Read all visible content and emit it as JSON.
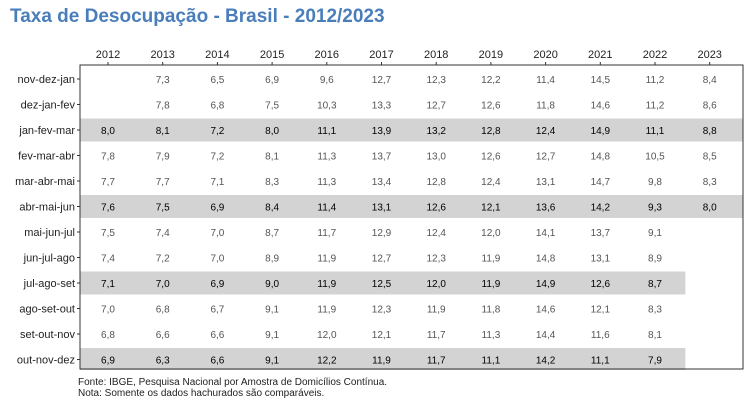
{
  "chart_data": {
    "type": "table",
    "title": "Taxa de Desocupação - Brasil - 2012/2023",
    "columns": [
      "2012",
      "2013",
      "2014",
      "2015",
      "2016",
      "2017",
      "2018",
      "2019",
      "2020",
      "2021",
      "2022",
      "2023"
    ],
    "rows": [
      {
        "label": "nov-dez-jan",
        "highlight": false,
        "values": [
          "",
          "7,3",
          "6,5",
          "6,9",
          "9,6",
          "12,7",
          "12,3",
          "12,2",
          "11,4",
          "14,5",
          "11,2",
          "8,4"
        ]
      },
      {
        "label": "dez-jan-fev",
        "highlight": false,
        "values": [
          "",
          "7,8",
          "6,8",
          "7,5",
          "10,3",
          "13,3",
          "12,7",
          "12,6",
          "11,8",
          "14,6",
          "11,2",
          "8,6"
        ]
      },
      {
        "label": "jan-fev-mar",
        "highlight": true,
        "values": [
          "8,0",
          "8,1",
          "7,2",
          "8,0",
          "11,1",
          "13,9",
          "13,2",
          "12,8",
          "12,4",
          "14,9",
          "11,1",
          "8,8"
        ]
      },
      {
        "label": "fev-mar-abr",
        "highlight": false,
        "values": [
          "7,8",
          "7,9",
          "7,2",
          "8,1",
          "11,3",
          "13,7",
          "13,0",
          "12,6",
          "12,7",
          "14,8",
          "10,5",
          "8,5"
        ]
      },
      {
        "label": "mar-abr-mai",
        "highlight": false,
        "values": [
          "7,7",
          "7,7",
          "7,1",
          "8,3",
          "11,3",
          "13,4",
          "12,8",
          "12,4",
          "13,1",
          "14,7",
          "9,8",
          "8,3"
        ]
      },
      {
        "label": "abr-mai-jun",
        "highlight": true,
        "values": [
          "7,6",
          "7,5",
          "6,9",
          "8,4",
          "11,4",
          "13,1",
          "12,6",
          "12,1",
          "13,6",
          "14,2",
          "9,3",
          "8,0"
        ]
      },
      {
        "label": "mai-jun-jul",
        "highlight": false,
        "values": [
          "7,5",
          "7,4",
          "7,0",
          "8,7",
          "11,7",
          "12,9",
          "12,4",
          "12,0",
          "14,1",
          "13,7",
          "9,1",
          ""
        ]
      },
      {
        "label": "jun-jul-ago",
        "highlight": false,
        "values": [
          "7,4",
          "7,2",
          "7,0",
          "8,9",
          "11,9",
          "12,7",
          "12,3",
          "11,9",
          "14,8",
          "13,1",
          "8,9",
          ""
        ]
      },
      {
        "label": "jul-ago-set",
        "highlight": true,
        "values": [
          "7,1",
          "7,0",
          "6,9",
          "9,0",
          "11,9",
          "12,5",
          "12,0",
          "11,9",
          "14,9",
          "12,6",
          "8,7",
          ""
        ]
      },
      {
        "label": "ago-set-out",
        "highlight": false,
        "values": [
          "7,0",
          "6,8",
          "6,7",
          "9,1",
          "11,9",
          "12,3",
          "11,9",
          "11,8",
          "14,6",
          "12,1",
          "8,3",
          ""
        ]
      },
      {
        "label": "set-out-nov",
        "highlight": false,
        "values": [
          "6,8",
          "6,6",
          "6,6",
          "9,1",
          "12,0",
          "12,1",
          "11,7",
          "11,3",
          "14,4",
          "11,6",
          "8,1",
          ""
        ]
      },
      {
        "label": "out-nov-dez",
        "highlight": true,
        "values": [
          "6,9",
          "6,3",
          "6,6",
          "9,1",
          "12,2",
          "11,9",
          "11,7",
          "11,1",
          "14,2",
          "11,1",
          "7,9",
          ""
        ]
      }
    ]
  },
  "footnotes": {
    "source": "Fonte: IBGE, Pesquisa Nacional por Amostra de Domicílios Contínua.",
    "note": " Nota: Somente os dados hachurados são comparáveis."
  }
}
